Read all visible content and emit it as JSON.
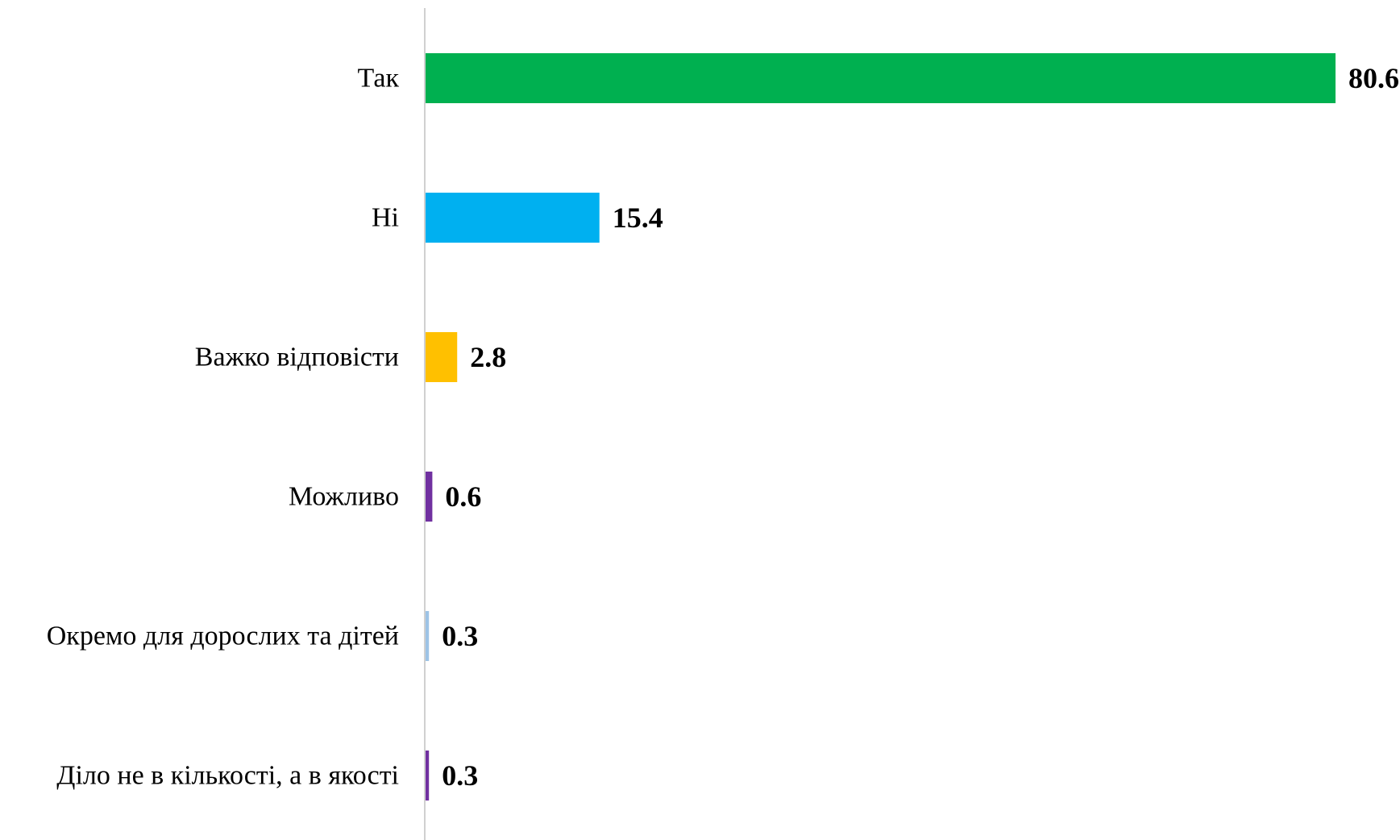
{
  "chart_data": {
    "type": "bar",
    "orientation": "horizontal",
    "title": "",
    "xlabel": "",
    "ylabel": "",
    "categories": [
      "Так",
      "Ні",
      "Важко відповісти",
      "Можливо",
      "Окремо для дорослих та дітей",
      "Діло не в кількості, а в якості"
    ],
    "values": [
      80.6,
      15.4,
      2.8,
      0.6,
      0.3,
      0.3
    ],
    "value_labels": [
      "80.6",
      "15.4",
      "2.8",
      "0.6",
      "0.3",
      "0.3"
    ],
    "colors": [
      "#00B050",
      "#00B0F0",
      "#FFC000",
      "#7030A0",
      "#9DC3E6",
      "#7030A0"
    ],
    "xlim": [
      0,
      80.6
    ],
    "grid": false,
    "legend": "none",
    "data_labels_position": "outside-end"
  }
}
